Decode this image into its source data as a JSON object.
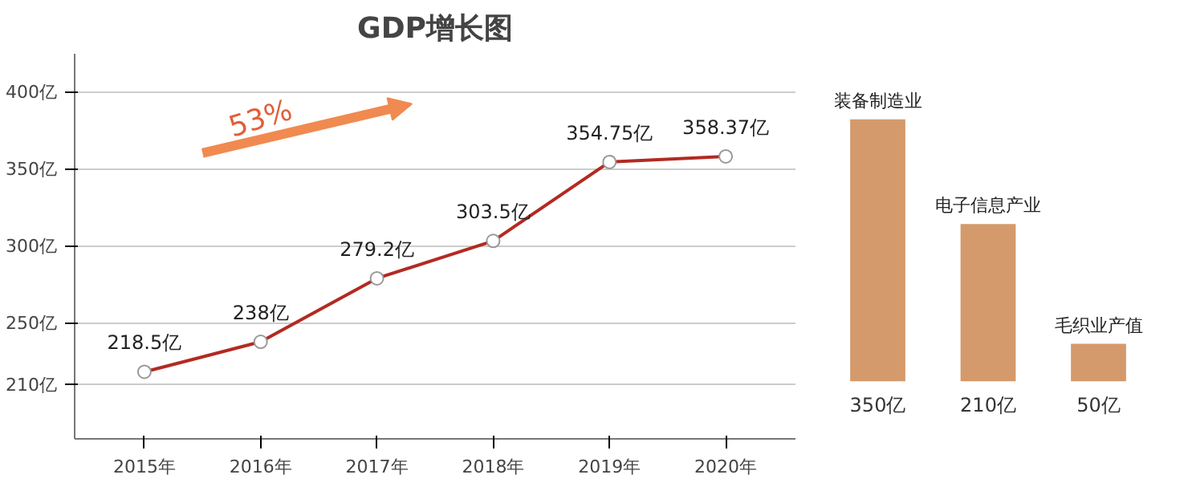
{
  "chart_data": [
    {
      "type": "line",
      "title": "GDP增长图",
      "categories": [
        "2015年",
        "2016年",
        "2017年",
        "2018年",
        "2019年",
        "2020年"
      ],
      "series": [
        {
          "color": "#b22a22",
          "values": [
            218.5,
            238,
            279.2,
            303.5,
            354.75,
            358.37
          ]
        }
      ],
      "value_labels": [
        "218.5亿",
        "238亿",
        "279.2亿",
        "303.5亿",
        "354.75亿",
        "358.37亿"
      ],
      "ylim": [
        175,
        425
      ],
      "yticks": [
        {
          "value": 210,
          "label": "210亿"
        },
        {
          "value": 250,
          "label": "250亿"
        },
        {
          "value": 300,
          "label": "300亿"
        },
        {
          "value": 350,
          "label": "350亿"
        },
        {
          "value": 400,
          "label": "400亿"
        }
      ],
      "grid": "y",
      "marker": "circle",
      "line_style": "solid",
      "annotations": [
        "53%"
      ]
    },
    {
      "type": "bar",
      "categories": [
        "装备制造业",
        "电子信息产业",
        "毛织业产值"
      ],
      "values": [
        350,
        210,
        50
      ],
      "color": "#d49a6c",
      "value_labels": [
        "350亿",
        "210亿",
        "50亿"
      ]
    }
  ]
}
